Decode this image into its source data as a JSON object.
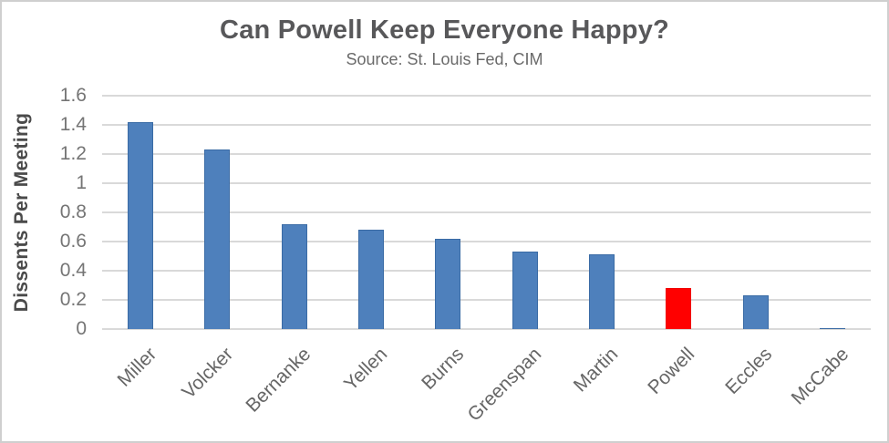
{
  "chart_data": {
    "type": "bar",
    "title": "Can Powell Keep Everyone Happy?",
    "subtitle": "Source: St. Louis Fed, CIM",
    "ylabel": "Dissents Per Meeting",
    "xlabel": "",
    "categories": [
      "Miller",
      "Volcker",
      "Bernanke",
      "Yellen",
      "Burns",
      "Greenspan",
      "Martin",
      "Powell",
      "Eccles",
      "McCabe"
    ],
    "values": [
      1.42,
      1.23,
      0.72,
      0.68,
      0.62,
      0.53,
      0.51,
      0.28,
      0.23,
      0
    ],
    "highlight_category": "Powell",
    "ylim": [
      0,
      1.6
    ],
    "ytick_step": 0.2,
    "ytick_labels": [
      "0",
      "0.2",
      "0.4",
      "0.6",
      "0.8",
      "1",
      "1.2",
      "1.4",
      "1.6"
    ],
    "grid": "horizontal",
    "legend": "none",
    "colors": {
      "bar": "#4e80bc",
      "bar_border": "#3a6ba5",
      "highlight": "#ff0000",
      "gridline": "#d9d9d9",
      "title_text": "#58585a",
      "subtitle_text": "#6a6a6a",
      "tick_text": "#757575",
      "category_text": "#666666",
      "axis_title_text": "#4a4a4a"
    }
  }
}
